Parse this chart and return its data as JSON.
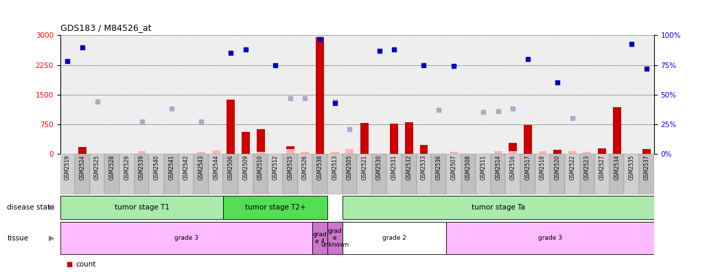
{
  "title": "GDS183 / M84526_at",
  "samples": [
    "GSM2519",
    "GSM2524",
    "GSM2525",
    "GSM2528",
    "GSM2529",
    "GSM2539",
    "GSM2540",
    "GSM2541",
    "GSM2542",
    "GSM2543",
    "GSM2544",
    "GSM2506",
    "GSM2509",
    "GSM2510",
    "GSM2512",
    "GSM2515",
    "GSM2526",
    "GSM2538",
    "GSM2513",
    "GSM2505",
    "GSM2521",
    "GSM2530",
    "GSM2531",
    "GSM2532",
    "GSM2533",
    "GSM2536",
    "GSM2507",
    "GSM2508",
    "GSM2511",
    "GSM2514",
    "GSM2516",
    "GSM2517",
    "GSM2518",
    "GSM2520",
    "GSM2522",
    "GSM2523",
    "GSM2527",
    "GSM2534",
    "GSM2535",
    "GSM2537"
  ],
  "count_present": [
    0,
    170,
    0,
    0,
    0,
    0,
    0,
    0,
    0,
    0,
    0,
    1380,
    550,
    620,
    0,
    190,
    0,
    2950,
    0,
    0,
    780,
    0,
    760,
    800,
    230,
    0,
    0,
    0,
    0,
    0,
    280,
    720,
    0,
    100,
    0,
    0,
    130,
    1180,
    0,
    110
  ],
  "count_absent_val": [
    0,
    0,
    0,
    0,
    0,
    60,
    0,
    0,
    0,
    40,
    80,
    0,
    0,
    40,
    0,
    110,
    40,
    0,
    50,
    110,
    0,
    0,
    0,
    0,
    0,
    0,
    50,
    0,
    0,
    70,
    60,
    0,
    60,
    0,
    70,
    40,
    0,
    0,
    0,
    0
  ],
  "rank_present": [
    78,
    90,
    0,
    0,
    0,
    0,
    0,
    0,
    0,
    0,
    0,
    85,
    88,
    0,
    75,
    0,
    0,
    97,
    43,
    0,
    0,
    87,
    88,
    0,
    75,
    0,
    74,
    0,
    0,
    0,
    0,
    80,
    0,
    60,
    0,
    0,
    0,
    0,
    93,
    72
  ],
  "rank_absent_val": [
    0,
    0,
    44,
    0,
    0,
    27,
    0,
    38,
    0,
    27,
    0,
    0,
    0,
    0,
    0,
    47,
    47,
    0,
    44,
    21,
    0,
    0,
    0,
    0,
    0,
    37,
    0,
    0,
    35,
    36,
    38,
    0,
    0,
    0,
    30,
    0,
    0,
    0,
    0,
    0
  ],
  "is_absent_count": [
    false,
    false,
    true,
    true,
    true,
    true,
    true,
    true,
    true,
    true,
    false,
    false,
    false,
    true,
    false,
    true,
    true,
    false,
    true,
    true,
    false,
    false,
    false,
    false,
    false,
    true,
    true,
    true,
    true,
    true,
    false,
    false,
    true,
    false,
    true,
    true,
    false,
    false,
    false,
    false
  ],
  "is_absent_rank": [
    false,
    false,
    true,
    true,
    true,
    true,
    true,
    true,
    true,
    true,
    false,
    false,
    false,
    false,
    false,
    true,
    true,
    false,
    true,
    true,
    false,
    false,
    false,
    false,
    false,
    true,
    false,
    true,
    true,
    true,
    true,
    false,
    false,
    false,
    true,
    true,
    false,
    false,
    false,
    false
  ],
  "disease_state_groups": [
    {
      "label": "tumor stage T1",
      "start": 0,
      "end": 11,
      "color": "#AAEAAA"
    },
    {
      "label": "tumor stage T2+",
      "start": 11,
      "end": 18,
      "color": "#55DD55"
    },
    {
      "label": "tumor stage Ta",
      "start": 19,
      "end": 40,
      "color": "#AAEAAA"
    }
  ],
  "tissue_groups": [
    {
      "label": "grade 3",
      "start": 0,
      "end": 17,
      "color": "#FFBBFF"
    },
    {
      "label": "grad\ne 4",
      "start": 17,
      "end": 18,
      "color": "#CC77CC"
    },
    {
      "label": "grad\ne\nunknown",
      "start": 18,
      "end": 19,
      "color": "#CC77CC"
    },
    {
      "label": "grade 2",
      "start": 19,
      "end": 26,
      "color": "#FFFFFF"
    },
    {
      "label": "grade 3",
      "start": 26,
      "end": 40,
      "color": "#FFBBFF"
    }
  ],
  "ylim_left": [
    0,
    3000
  ],
  "ylim_right": [
    0,
    100
  ],
  "yticks_left": [
    0,
    750,
    1500,
    2250,
    3000
  ],
  "yticks_right": [
    0,
    25,
    50,
    75,
    100
  ],
  "bar_color": "#CC0000",
  "bar_absent_color": "#FFB3B3",
  "dot_color": "#0000BB",
  "dot_absent_color": "#AAAACC",
  "bg_color": "#FFFFFF",
  "xlabel_bg_odd": "#D8D8D8",
  "xlabel_bg_even": "#C0C0C0"
}
